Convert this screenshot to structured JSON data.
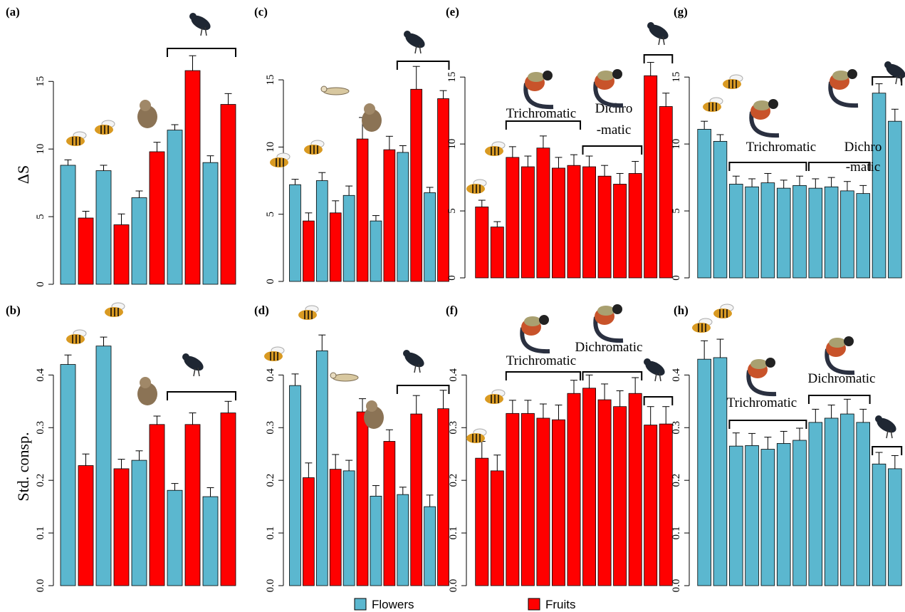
{
  "chart_data": [
    {
      "type": "bar",
      "panel_label": "(a)",
      "ylabel": "ΔS",
      "ylim": [
        0,
        16.7
      ],
      "yticks": [
        0,
        5,
        10,
        15
      ],
      "values": [
        8.8,
        4.9,
        8.4,
        4.4,
        6.4,
        9.8,
        11.4,
        15.8,
        9.0,
        13.3
      ],
      "errors": [
        0.4,
        0.5,
        0.4,
        0.8,
        0.5,
        0.7,
        0.4,
        1.1,
        0.5,
        0.8
      ],
      "colors": [
        "#5bb7cf",
        "#ff0000",
        "#5bb7cf",
        "#ff0000",
        "#5bb7cf",
        "#ff0000",
        "#5bb7cf",
        "#ff0000",
        "#5bb7cf",
        "#ff0000"
      ]
    },
    {
      "type": "bar",
      "panel_label": "(b)",
      "ylabel": "Std. consp.",
      "ylim": [
        0,
        0.46
      ],
      "yticks": [
        {
          "value": 0,
          "label": "0.0"
        },
        0.1,
        0.2,
        0.3,
        0.4
      ],
      "values": [
        0.42,
        0.228,
        0.455,
        0.222,
        0.238,
        0.306,
        0.181,
        0.306,
        0.169,
        0.328
      ],
      "errors": [
        0.018,
        0.022,
        0.017,
        0.018,
        0.018,
        0.016,
        0.013,
        0.022,
        0.017,
        0.022
      ],
      "colors": [
        "#5bb7cf",
        "#ff0000",
        "#5bb7cf",
        "#ff0000",
        "#5bb7cf",
        "#ff0000",
        "#5bb7cf",
        "#ff0000",
        "#5bb7cf",
        "#ff0000"
      ]
    },
    {
      "type": "bar",
      "panel_label": "(c)",
      "ylim": [
        0,
        16.7
      ],
      "yticks": [
        0,
        5,
        10,
        15
      ],
      "values": [
        7.2,
        4.5,
        7.5,
        5.1,
        6.4,
        10.6,
        4.5,
        9.8,
        9.6,
        14.3,
        6.6,
        13.6
      ],
      "errors": [
        0.4,
        0.6,
        0.6,
        0.9,
        0.7,
        1.6,
        0.4,
        1.0,
        0.5,
        1.7,
        0.4,
        0.6
      ],
      "colors": [
        "#5bb7cf",
        "#ff0000",
        "#5bb7cf",
        "#ff0000",
        "#5bb7cf",
        "#ff0000",
        "#5bb7cf",
        "#ff0000",
        "#5bb7cf",
        "#ff0000",
        "#5bb7cf",
        "#ff0000"
      ]
    },
    {
      "type": "bar",
      "panel_label": "(d)",
      "ylim": [
        0,
        0.46
      ],
      "yticks": [
        {
          "value": 0,
          "label": "0.0"
        },
        0.1,
        0.2,
        0.3,
        0.4
      ],
      "values": [
        0.38,
        0.205,
        0.446,
        0.221,
        0.218,
        0.33,
        0.17,
        0.274,
        0.173,
        0.326,
        0.15,
        0.336
      ],
      "errors": [
        0.022,
        0.028,
        0.03,
        0.028,
        0.02,
        0.025,
        0.02,
        0.022,
        0.014,
        0.035,
        0.022,
        0.035
      ],
      "colors": [
        "#5bb7cf",
        "#ff0000",
        "#5bb7cf",
        "#ff0000",
        "#5bb7cf",
        "#ff0000",
        "#5bb7cf",
        "#ff0000",
        "#5bb7cf",
        "#ff0000",
        "#5bb7cf",
        "#ff0000"
      ]
    },
    {
      "type": "bar",
      "panel_label": "(e)",
      "ylim": [
        0,
        16.5
      ],
      "yticks": [
        0,
        5,
        10,
        15
      ],
      "values": [
        5.3,
        3.8,
        9.0,
        8.3,
        9.7,
        8.2,
        8.4,
        8.3,
        7.6,
        7.0,
        7.8,
        15.1,
        12.8
      ],
      "errors": [
        0.5,
        0.4,
        0.8,
        0.8,
        0.9,
        0.8,
        0.8,
        0.8,
        0.8,
        0.8,
        0.9,
        1.0,
        1.0
      ],
      "colors": [
        "#ff0000",
        "#ff0000",
        "#ff0000",
        "#ff0000",
        "#ff0000",
        "#ff0000",
        "#ff0000",
        "#ff0000",
        "#ff0000",
        "#ff0000",
        "#ff0000",
        "#ff0000",
        "#ff0000"
      ],
      "annotations": [
        "Trichromatic",
        "Dichro",
        "-matic"
      ]
    },
    {
      "type": "bar",
      "panel_label": "(f)",
      "ylim": [
        0,
        0.46
      ],
      "yticks": [
        {
          "value": 0,
          "label": "0.0"
        },
        0.1,
        0.2,
        0.3,
        0.4
      ],
      "values": [
        0.242,
        0.218,
        0.327,
        0.327,
        0.318,
        0.315,
        0.365,
        0.375,
        0.353,
        0.34,
        0.365,
        0.305,
        0.307
      ],
      "errors": [
        0.032,
        0.03,
        0.025,
        0.025,
        0.027,
        0.028,
        0.025,
        0.025,
        0.03,
        0.03,
        0.03,
        0.035,
        0.033
      ],
      "colors": [
        "#ff0000",
        "#ff0000",
        "#ff0000",
        "#ff0000",
        "#ff0000",
        "#ff0000",
        "#ff0000",
        "#ff0000",
        "#ff0000",
        "#ff0000",
        "#ff0000",
        "#ff0000",
        "#ff0000"
      ],
      "annotations": [
        "Trichromatic",
        "Dichromatic"
      ]
    },
    {
      "type": "bar",
      "panel_label": "(g)",
      "ylim": [
        0,
        16.5
      ],
      "yticks": [
        0,
        5,
        10,
        15
      ],
      "values": [
        11.1,
        10.2,
        7.0,
        6.8,
        7.1,
        6.7,
        6.9,
        6.7,
        6.8,
        6.5,
        6.3,
        13.8,
        11.7
      ],
      "errors": [
        0.6,
        0.5,
        0.6,
        0.6,
        0.7,
        0.6,
        0.7,
        0.7,
        0.7,
        0.7,
        0.6,
        0.7,
        0.9
      ],
      "colors": [
        "#5bb7cf",
        "#5bb7cf",
        "#5bb7cf",
        "#5bb7cf",
        "#5bb7cf",
        "#5bb7cf",
        "#5bb7cf",
        "#5bb7cf",
        "#5bb7cf",
        "#5bb7cf",
        "#5bb7cf",
        "#5bb7cf",
        "#5bb7cf"
      ],
      "annotations": [
        "Trichromatic",
        "Dichro",
        "-matic"
      ]
    },
    {
      "type": "bar",
      "panel_label": "(h)",
      "ylim": [
        0,
        0.46
      ],
      "yticks": [
        {
          "value": 0,
          "label": "0.0"
        },
        0.1,
        0.2,
        0.3,
        0.4
      ],
      "values": [
        0.43,
        0.433,
        0.265,
        0.266,
        0.259,
        0.27,
        0.276,
        0.31,
        0.318,
        0.326,
        0.31,
        0.231,
        0.222
      ],
      "errors": [
        0.035,
        0.035,
        0.025,
        0.023,
        0.023,
        0.023,
        0.023,
        0.025,
        0.025,
        0.028,
        0.025,
        0.022,
        0.025
      ],
      "colors": [
        "#5bb7cf",
        "#5bb7cf",
        "#5bb7cf",
        "#5bb7cf",
        "#5bb7cf",
        "#5bb7cf",
        "#5bb7cf",
        "#5bb7cf",
        "#5bb7cf",
        "#5bb7cf",
        "#5bb7cf",
        "#5bb7cf",
        "#5bb7cf"
      ],
      "annotations": [
        "Trichromatic",
        "Dichromatic"
      ]
    }
  ],
  "legend": [
    {
      "name": "Flowers",
      "color": "#5bb7cf"
    },
    {
      "name": "Fruits",
      "color": "#ff0000"
    }
  ]
}
